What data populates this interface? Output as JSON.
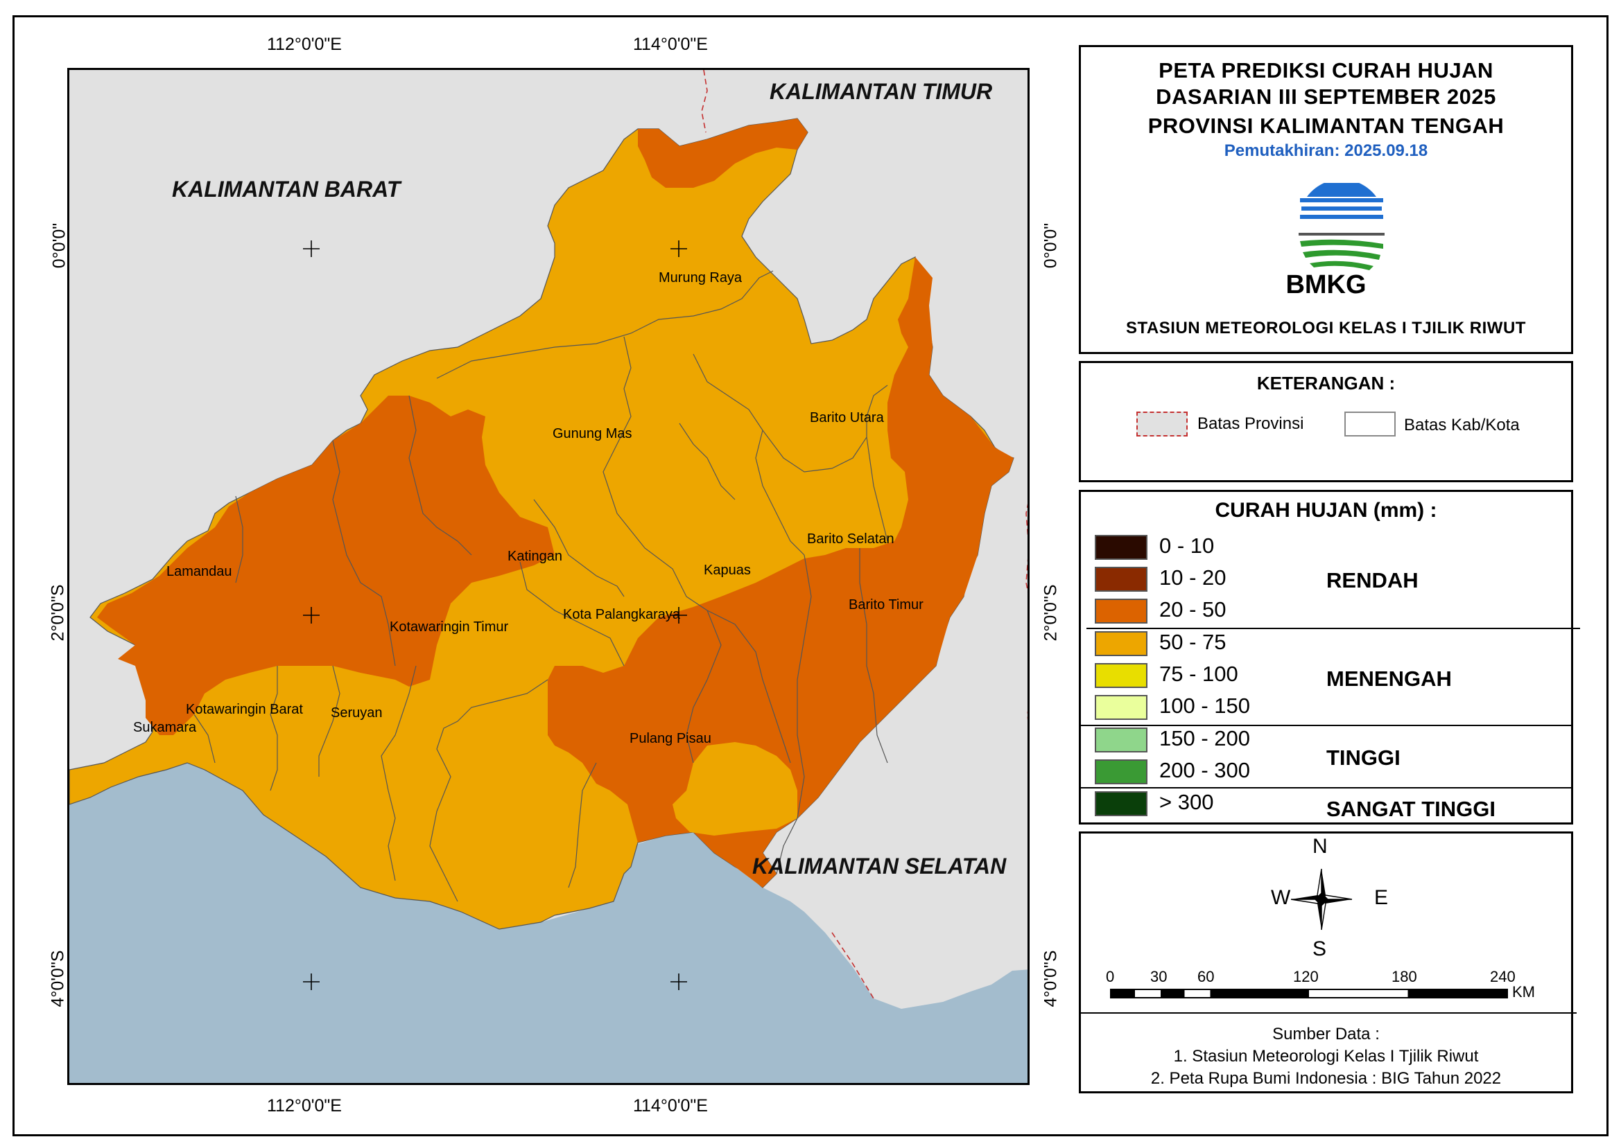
{
  "map": {
    "coords": {
      "top": [
        "112°0'0\"E",
        "114°0'0\"E"
      ],
      "bottom": [
        "112°0'0\"E",
        "114°0'0\"E"
      ],
      "left": [
        "0°0'0\"",
        "2°0'0\"S",
        "4°0'0\"S"
      ],
      "right": [
        "0°0'0\"",
        "2°0'0\"S",
        "4°0'0\"S"
      ]
    },
    "provinces": {
      "east": "KALIMANTAN TIMUR",
      "west": "KALIMANTAN BARAT",
      "south": "KALIMANTAN SELATAN"
    },
    "regencies": [
      "Murung Raya",
      "Gunung Mas",
      "Barito Utara",
      "Katingan",
      "Barito Selatan",
      "Lamandau",
      "Kapuas",
      "Barito Timur",
      "Kota Palangkaraya",
      "Kotawaringin Timur",
      "Kotawaringin Barat",
      "Seruyan",
      "Sukamara",
      "Pulang Pisau"
    ],
    "colors": {
      "land_other": "#e1e1e1",
      "sea": "#a3bccd",
      "band_20_50": "#dc6300",
      "band_50_75": "#eda600"
    }
  },
  "header": {
    "title_line1": "PETA PREDIKSI CURAH HUJAN",
    "title_line2": "DASARIAN III SEPTEMBER 2025",
    "title_line3": "PROVINSI KALIMANTAN TENGAH",
    "updated": "Pemutakhiran: 2025.09.18",
    "logo_text": "BMKG",
    "station": "STASIUN METEOROLOGI KELAS I TJILIK RIWUT"
  },
  "keterangan": {
    "title": "KETERANGAN :",
    "prov": "Batas Provinsi",
    "kab": "Batas Kab/Kota"
  },
  "legend": {
    "title": "CURAH HUJAN (mm) :",
    "classes": [
      {
        "label": "0 - 10",
        "color": "#2a0a00"
      },
      {
        "label": "10 - 20",
        "color": "#8a2a00"
      },
      {
        "label": "20 - 50",
        "color": "#dc6300"
      },
      {
        "label": "50 - 75",
        "color": "#eda600"
      },
      {
        "label": "75 - 100",
        "color": "#e8de00"
      },
      {
        "label": "100 - 150",
        "color": "#eaff9c"
      },
      {
        "label": "150 - 200",
        "color": "#8fd68b"
      },
      {
        "label": "200 - 300",
        "color": "#3a9a34"
      },
      {
        "label": "> 300",
        "color": "#0a3f0a"
      }
    ],
    "categories": [
      "RENDAH",
      "MENENGAH",
      "TINGGI",
      "SANGAT TINGGI"
    ]
  },
  "compass": {
    "n": "N",
    "s": "S",
    "e": "E",
    "w": "W"
  },
  "scale": {
    "ticks": [
      "0",
      "30",
      "60",
      "120",
      "180",
      "240"
    ],
    "unit": "KM"
  },
  "sources": {
    "title": "Sumber Data :",
    "line1": "1. Stasiun Meteorologi Kelas I Tjilik Riwut",
    "line2": "2. Peta Rupa Bumi Indonesia : BIG Tahun 2022"
  }
}
